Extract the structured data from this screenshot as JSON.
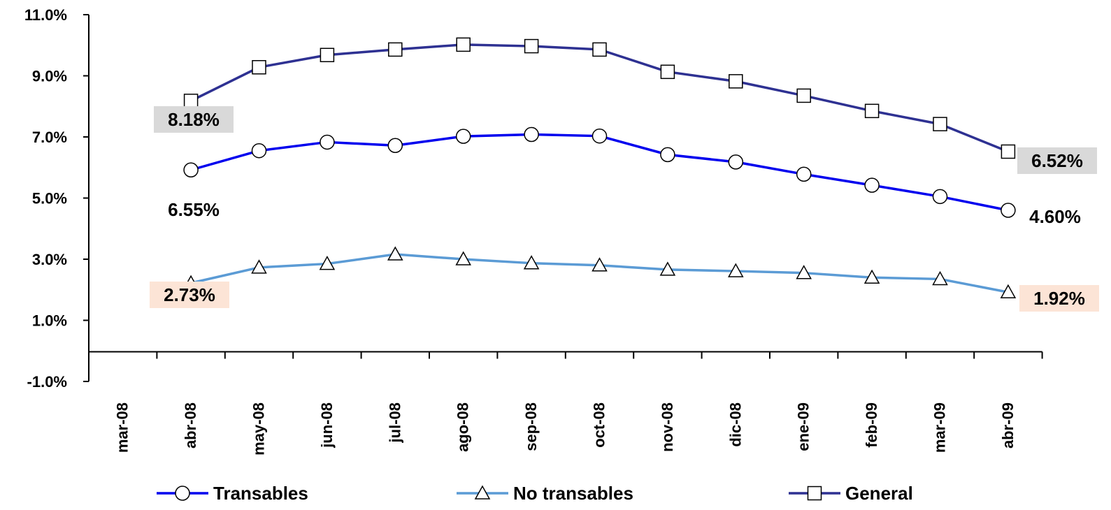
{
  "chart_data": {
    "type": "line",
    "categories": [
      "mar-08",
      "abr-08",
      "may-08",
      "jun-08",
      "jul-08",
      "ago-08",
      "sep-08",
      "oct-08",
      "nov-08",
      "dic-08",
      "ene-09",
      "feb-09",
      "mar-09",
      "abr-09"
    ],
    "ylim": [
      -1.0,
      11.0
    ],
    "yticks": [
      "11.0%",
      "9.0%",
      "7.0%",
      "5.0%",
      "3.0%",
      "1.0%",
      "-1.0%"
    ],
    "ytick_values": [
      11,
      9,
      7,
      5,
      3,
      1,
      -1
    ],
    "grid": false,
    "legend_position": "bottom",
    "series": [
      {
        "name": "Transables",
        "marker": "circle",
        "color": "#0000EE",
        "values": [
          null,
          5.92,
          6.55,
          6.83,
          6.72,
          7.02,
          7.08,
          7.03,
          6.42,
          6.18,
          5.78,
          5.42,
          5.05,
          4.6
        ]
      },
      {
        "name": "No transables",
        "marker": "triangle",
        "color": "#5B9BD5",
        "values": [
          null,
          2.22,
          2.73,
          2.85,
          3.16,
          3.0,
          2.87,
          2.8,
          2.66,
          2.61,
          2.55,
          2.4,
          2.35,
          1.92
        ]
      },
      {
        "name": "General",
        "marker": "square",
        "color": "#2E3192",
        "values": [
          null,
          8.18,
          9.28,
          9.68,
          9.86,
          10.02,
          9.97,
          9.86,
          9.13,
          8.82,
          8.35,
          7.85,
          7.42,
          6.52
        ]
      }
    ],
    "annotations": [
      {
        "text": "8.18%",
        "bg": "#D9D9D9"
      },
      {
        "text": "6.55%",
        "bg": ""
      },
      {
        "text": "2.73%",
        "bg": "#FCE4D6"
      },
      {
        "text": "6.52%",
        "bg": "#D9D9D9"
      },
      {
        "text": "4.60%",
        "bg": ""
      },
      {
        "text": "1.92%",
        "bg": "#FCE4D6"
      }
    ]
  }
}
